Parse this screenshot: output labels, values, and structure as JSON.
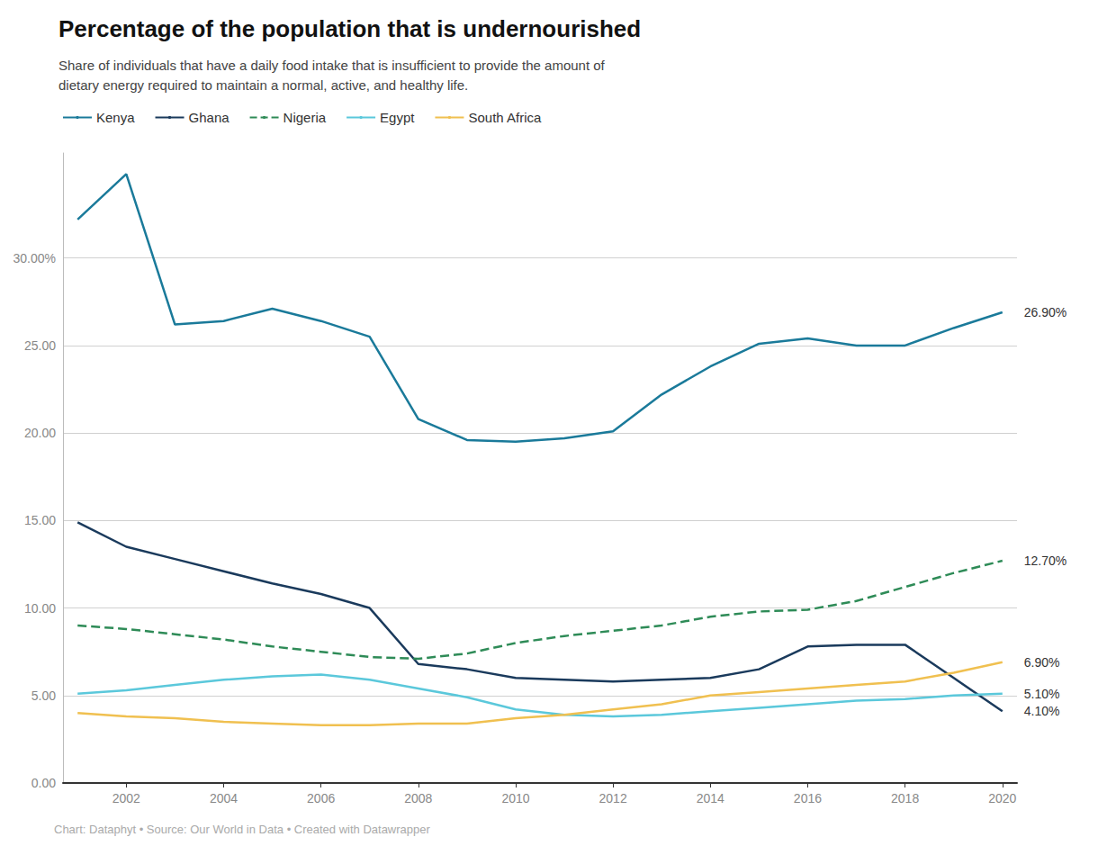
{
  "chart_data": {
    "type": "line",
    "title": "Percentage of the population that is undernourished",
    "subtitle": "Share of individuals that have a daily food intake that is insufficient to provide the amount of\ndietary energy required to maintain a normal, active, and healthy life.",
    "footer": "Chart: Dataphyt • Source: Our World in Data • Created with Datawrapper",
    "x": [
      2001,
      2002,
      2003,
      2004,
      2005,
      2006,
      2007,
      2008,
      2009,
      2010,
      2011,
      2012,
      2013,
      2014,
      2015,
      2016,
      2017,
      2018,
      2019,
      2020
    ],
    "series": [
      {
        "name": "Kenya",
        "color": "#1a7a9a",
        "line_style": "solid",
        "values": [
          32.2,
          34.8,
          26.2,
          26.4,
          27.1,
          26.4,
          25.5,
          20.8,
          19.6,
          19.5,
          19.7,
          20.1,
          22.2,
          23.8,
          25.1,
          25.4,
          25.0,
          25.0,
          26.0,
          26.9
        ]
      },
      {
        "name": "Ghana",
        "color": "#1a3a5c",
        "line_style": "solid",
        "values": [
          14.9,
          13.5,
          12.8,
          12.1,
          11.4,
          10.8,
          10.0,
          6.8,
          6.5,
          6.0,
          5.9,
          5.8,
          5.9,
          6.0,
          6.5,
          7.8,
          7.9,
          7.9,
          6.0,
          4.1
        ]
      },
      {
        "name": "Nigeria",
        "color": "#2e8b57",
        "line_style": "dashed",
        "values": [
          9.0,
          8.8,
          8.5,
          8.2,
          7.8,
          7.5,
          7.2,
          7.1,
          7.4,
          8.0,
          8.4,
          8.7,
          9.0,
          9.5,
          9.8,
          9.9,
          10.4,
          11.2,
          12.0,
          12.7
        ]
      },
      {
        "name": "Egypt",
        "color": "#5bc8db",
        "line_style": "solid",
        "values": [
          5.1,
          5.3,
          5.6,
          5.9,
          6.1,
          6.2,
          5.9,
          5.4,
          4.9,
          4.2,
          3.9,
          3.8,
          3.9,
          4.1,
          4.3,
          4.5,
          4.7,
          4.8,
          5.0,
          5.1
        ]
      },
      {
        "name": "South Africa",
        "color": "#f0c050",
        "line_style": "solid",
        "values": [
          4.0,
          3.8,
          3.7,
          3.5,
          3.4,
          3.3,
          3.3,
          3.4,
          3.4,
          3.7,
          3.9,
          4.2,
          4.5,
          5.0,
          5.2,
          5.4,
          5.6,
          5.8,
          6.3,
          6.9
        ]
      }
    ],
    "annotations": [
      {
        "text": "26.90%",
        "x": 2020,
        "y": 26.9
      },
      {
        "text": "12.70%",
        "x": 2020,
        "y": 12.7
      },
      {
        "text": "6.90%",
        "x": 2020,
        "y": 6.9
      },
      {
        "text": "5.10%",
        "x": 2020,
        "y": 5.1
      },
      {
        "text": "4.10%",
        "x": 2020,
        "y": 4.1
      }
    ],
    "xlim": [
      2000.7,
      2020.3
    ],
    "xticks": [
      2002,
      2004,
      2006,
      2008,
      2010,
      2012,
      2014,
      2016,
      2018,
      2020
    ],
    "ylim": [
      0,
      36
    ],
    "yticks": [
      {
        "value": 0,
        "label": "0.00"
      },
      {
        "value": 5,
        "label": "5.00"
      },
      {
        "value": 10,
        "label": "10.00"
      },
      {
        "value": 15,
        "label": "15.00"
      },
      {
        "value": 20,
        "label": "20.00"
      },
      {
        "value": 25,
        "label": "25.00"
      },
      {
        "value": 30,
        "label": "30.00%"
      }
    ],
    "grid": true,
    "legend": "top"
  }
}
